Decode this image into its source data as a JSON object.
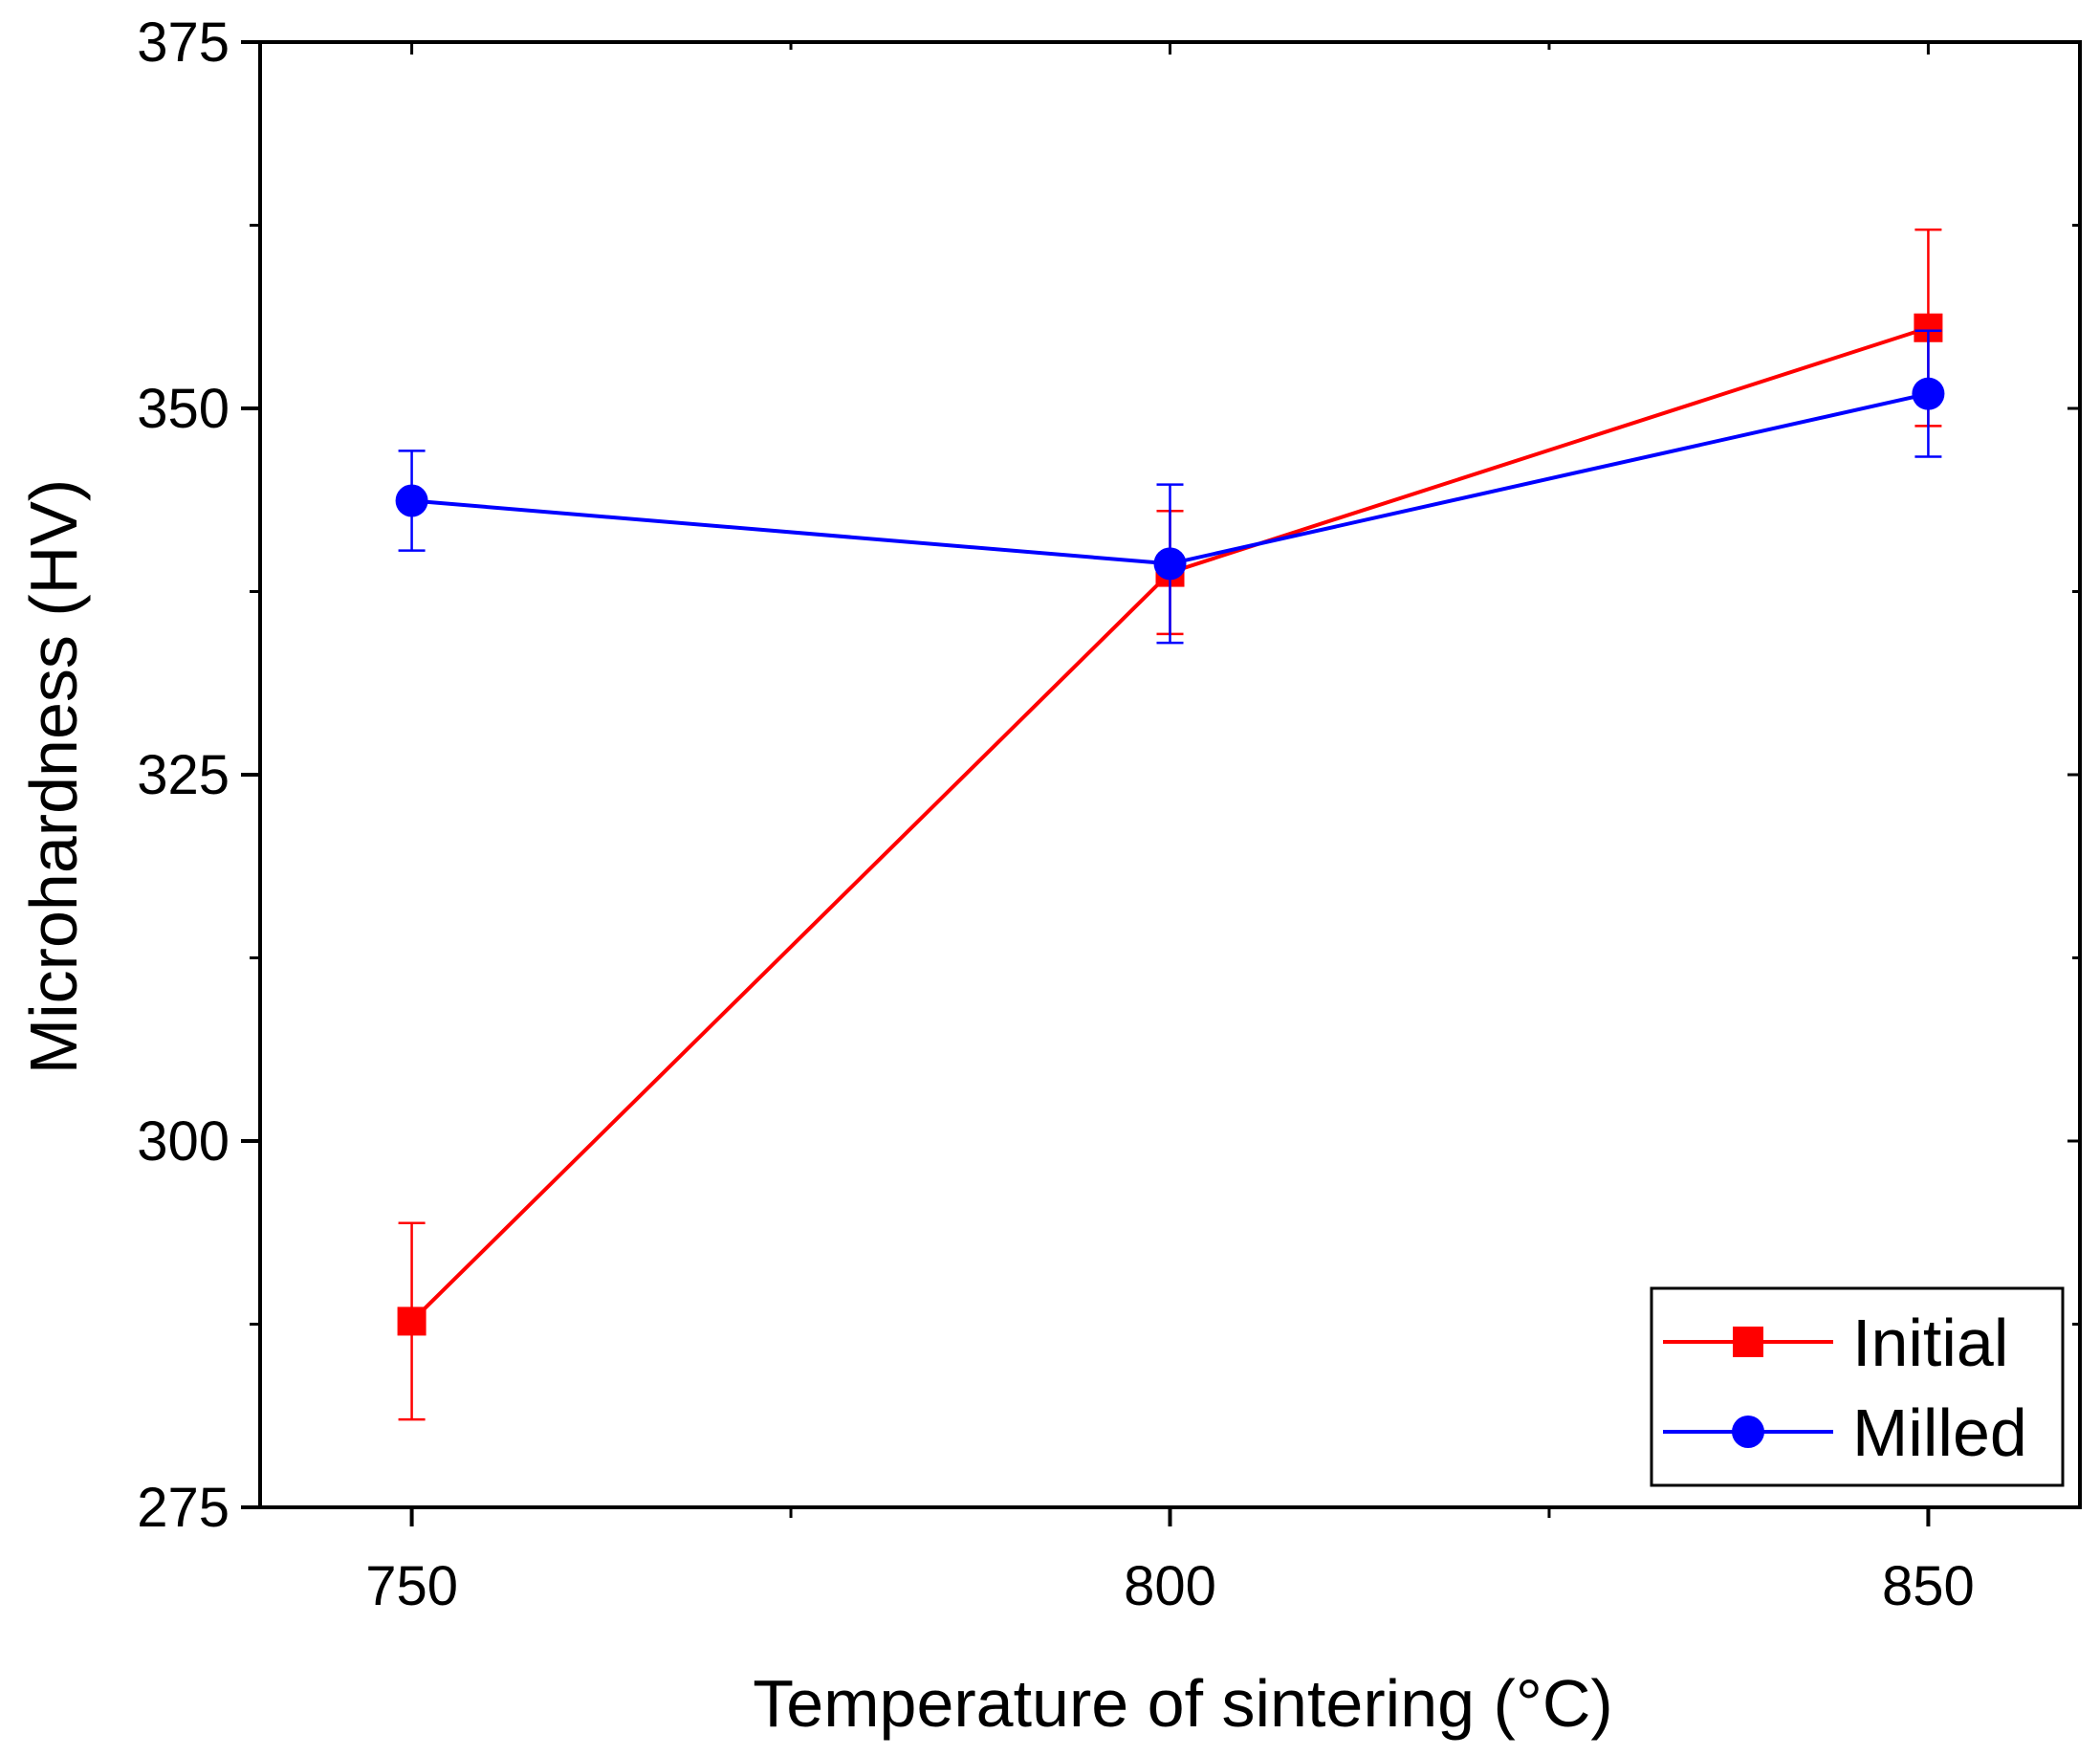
{
  "chart_data": {
    "type": "line",
    "title": "",
    "xlabel": "Temperature of sintering (°C)",
    "ylabel": "Microhardness (HV)",
    "x": [
      750,
      800,
      850
    ],
    "xlim": [
      740,
      860
    ],
    "ylim": [
      275,
      375
    ],
    "xticks": [
      750,
      800,
      850
    ],
    "yticks": [
      275,
      300,
      325,
      350,
      375
    ],
    "x_tick_labels": [
      "750",
      "800",
      "850"
    ],
    "y_tick_labels": [
      "275",
      "300",
      "325",
      "350",
      "375"
    ],
    "grid": false,
    "legend_position": "bottom-right",
    "series": [
      {
        "name": "Initial",
        "color": "#ff0000",
        "marker": "square",
        "values": [
          287.7,
          338.8,
          355.5
        ],
        "errors": [
          6.7,
          4.2,
          6.7
        ]
      },
      {
        "name": "Milled",
        "color": "#0000ff",
        "marker": "circle",
        "values": [
          343.7,
          339.4,
          351.0
        ],
        "errors": [
          3.4,
          5.4,
          4.3
        ]
      }
    ]
  }
}
